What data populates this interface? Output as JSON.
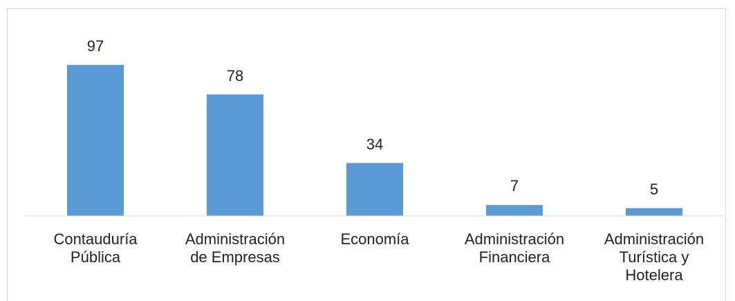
{
  "chart_data": {
    "type": "bar",
    "categories": [
      "Contauduría\nPública",
      "Administración\nde Empresas",
      "Economía",
      "Administración\nFinanciera",
      "Administración\nTurística y\nHotelera"
    ],
    "values": [
      97,
      78,
      34,
      7,
      5
    ],
    "color": "#5b9bd5",
    "ylim": [
      0,
      100
    ]
  }
}
